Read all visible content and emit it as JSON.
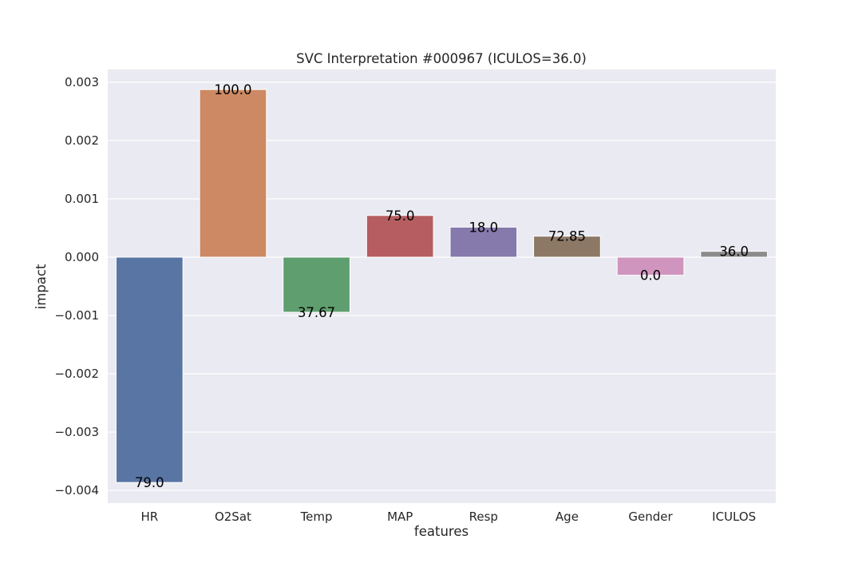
{
  "chart_data": {
    "type": "bar",
    "title": "SVC Interpretation #000967 (ICULOS=36.0)",
    "xlabel": "features",
    "ylabel": "impact",
    "categories": [
      "HR",
      "O2Sat",
      "Temp",
      "MAP",
      "Resp",
      "Age",
      "Gender",
      "ICULOS"
    ],
    "values": [
      -0.003865,
      0.002875,
      -0.000945,
      0.000715,
      0.000515,
      0.00036,
      -0.00031,
      0.0001
    ],
    "bar_labels": [
      "79.0",
      "100.0",
      "37.67",
      "75.0",
      "18.0",
      "72.85",
      "0.0",
      "36.0"
    ],
    "colors": [
      "#5875a4",
      "#cc8963",
      "#5f9e6e",
      "#b55d60",
      "#857aab",
      "#8d7866",
      "#d095bf",
      "#8c8c8c"
    ],
    "ylim": [
      -0.0042,
      0.0032
    ],
    "yticks": [
      -0.004,
      -0.003,
      -0.002,
      -0.001,
      0.0,
      0.001,
      0.002,
      0.003
    ],
    "ytick_labels": [
      "−0.004",
      "−0.003",
      "−0.002",
      "−0.001",
      "0.000",
      "0.001",
      "0.002",
      "0.003"
    ],
    "grid": true,
    "background": "#eaeaf2"
  }
}
